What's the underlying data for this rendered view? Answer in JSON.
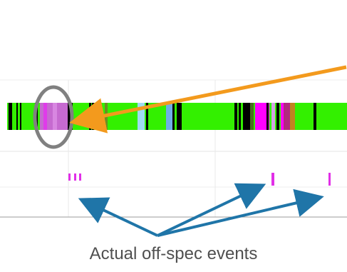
{
  "caption": {
    "text": "Actual off-spec events"
  },
  "colors": {
    "background": "#ffffff",
    "timeline_base": "#33f000",
    "gridline": "#e9e9e9",
    "track_line": "#e6e6e6",
    "baseline": "#999999",
    "highlight_circle": "#808080",
    "orange_arrow": "#f39a1d",
    "blue_arrow": "#1f75a8",
    "event_mark": "#e12fe7",
    "caption_text": "#4f4f4f"
  },
  "visual": {
    "timeline_segment_colors": [
      "#000000",
      "#c66ad0",
      "#e03bea",
      "#9fdcf2",
      "#6faee6",
      "#89ad42",
      "#4a6d20",
      "#ff00ff",
      "#d2a3e3",
      "#bf8420"
    ],
    "annotation_icons": [
      "highlight-circle-icon",
      "orange-arrow-icon",
      "blue-arrow-icon"
    ]
  }
}
